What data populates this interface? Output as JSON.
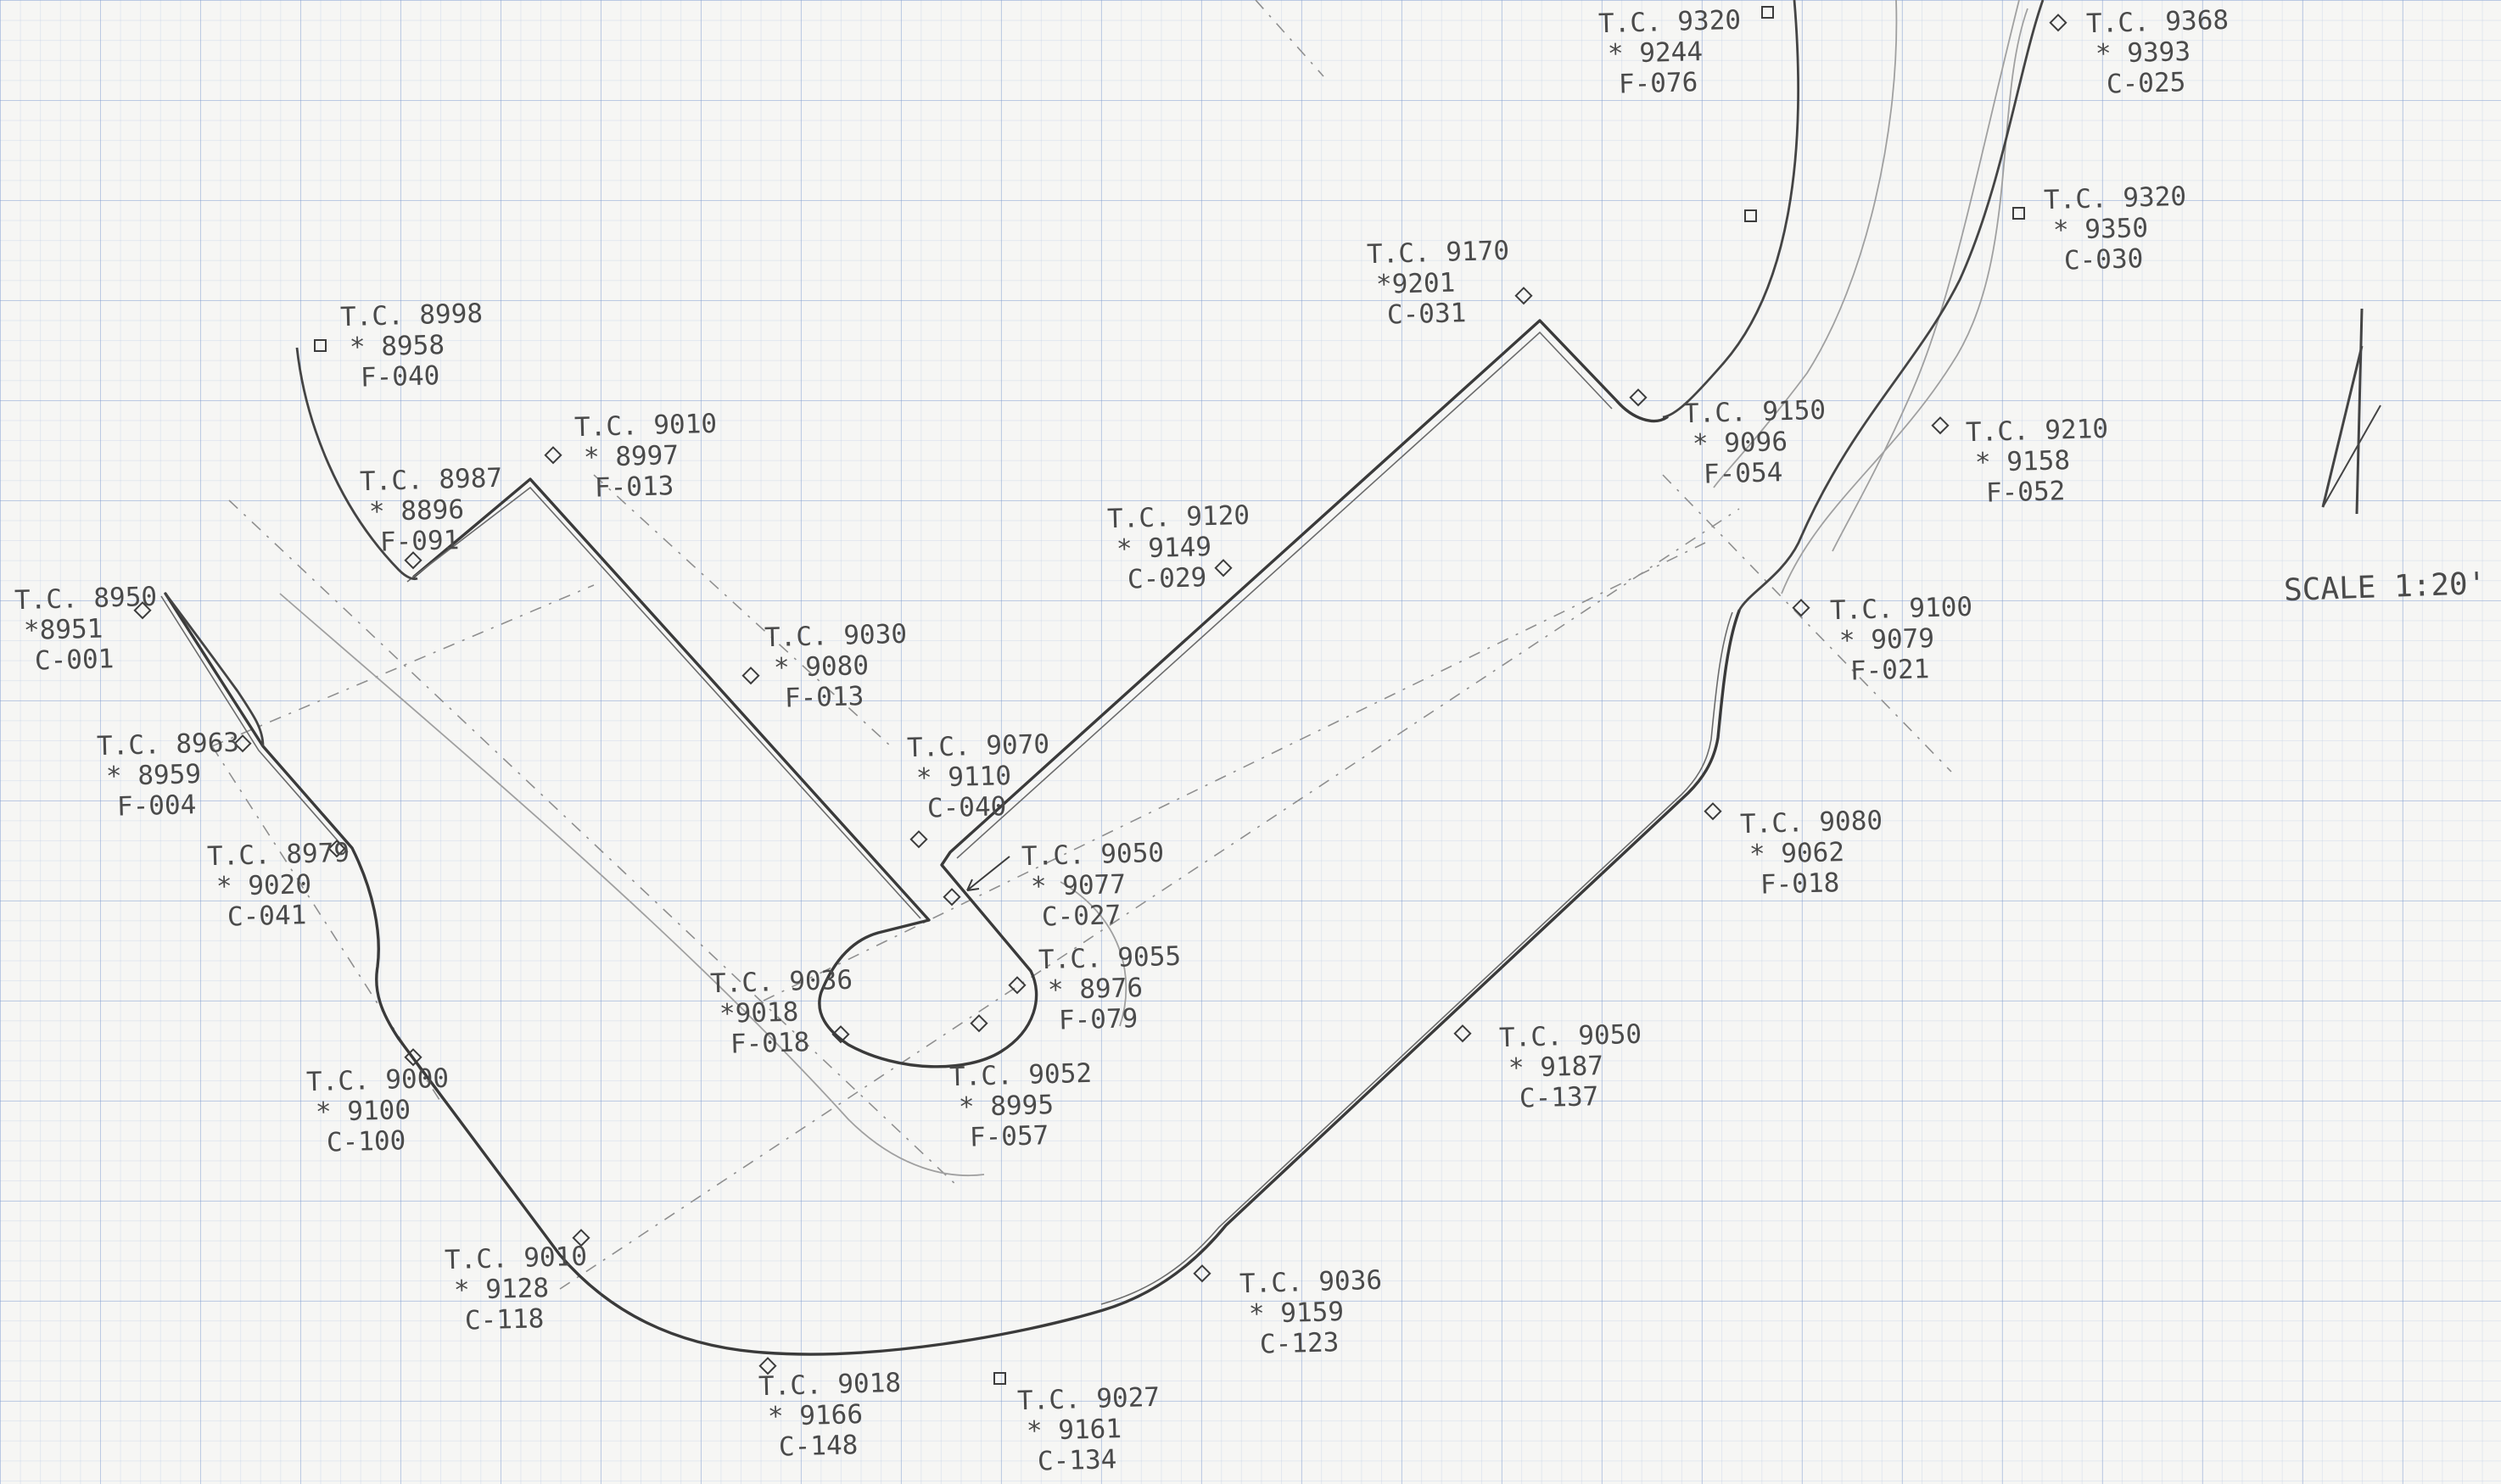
{
  "drawing": {
    "scale_label": "SCALE 1:20'",
    "north_arrow_icon": "north-arrow-icon",
    "elevation_icon": "diamond-marker-icon",
    "colors": {
      "line": "#3c3c3c",
      "faint": "#8a8a8a",
      "grid": "#7896cd"
    }
  },
  "elevations": [
    {
      "tc": "T.C. 8998",
      "value": "* 8958",
      "cutfill": "F-040"
    },
    {
      "tc": "T.C. 8987",
      "value": "* 8896",
      "cutfill": "F-091"
    },
    {
      "tc": "T.C. 9010",
      "value": "* 8997",
      "cutfill": "F-013"
    },
    {
      "tc": "T.C. 8950",
      "value": "*8951",
      "cutfill": "C-001"
    },
    {
      "tc": "T.C. 8963",
      "value": "* 8959",
      "cutfill": "F-004"
    },
    {
      "tc": "T.C. 8979",
      "value": "* 9020",
      "cutfill": "C-041"
    },
    {
      "tc": "T.C. 9000",
      "value": "* 9100",
      "cutfill": "C-100"
    },
    {
      "tc": "T.C. 9010",
      "value": "* 9128",
      "cutfill": "C-118"
    },
    {
      "tc": "T.C. 9018",
      "value": "* 9166",
      "cutfill": "C-148"
    },
    {
      "tc": "T.C. 9027",
      "value": "* 9161",
      "cutfill": "C-134"
    },
    {
      "tc": "T.C. 9030",
      "value": "* 9080",
      "cutfill": "F-013"
    },
    {
      "tc": "T.C. 9070",
      "value": "* 9110",
      "cutfill": "C-040"
    },
    {
      "tc": "T.C. 9050",
      "value": "* 9077",
      "cutfill": "C-027"
    },
    {
      "tc": "T.C. 9036",
      "value": "*9018",
      "cutfill": "F-018"
    },
    {
      "tc": "T.C. 9055",
      "value": "* 8976",
      "cutfill": "F-079"
    },
    {
      "tc": "T.C. 9052",
      "value": "* 8995",
      "cutfill": "F-057"
    },
    {
      "tc": "T.C. 9050",
      "value": "* 9187",
      "cutfill": "C-137"
    },
    {
      "tc": "T.C. 9036",
      "value": "* 9159",
      "cutfill": "C-123"
    },
    {
      "tc": "T.C. 9120",
      "value": "* 9149",
      "cutfill": "C-029"
    },
    {
      "tc": "T.C. 9170",
      "value": "*9201",
      "cutfill": "C-031"
    },
    {
      "tc": "T.C. 9320",
      "value": "* 9244",
      "cutfill": "F-076"
    },
    {
      "tc": "T.C. 9368",
      "value": "* 9393",
      "cutfill": "C-025"
    },
    {
      "tc": "T.C. 9320",
      "value": "* 9350",
      "cutfill": "C-030"
    },
    {
      "tc": "T.C. 9150",
      "value": "* 9096",
      "cutfill": "F-054"
    },
    {
      "tc": "T.C. 9210",
      "value": "* 9158",
      "cutfill": "F-052"
    },
    {
      "tc": "T.C. 9100",
      "value": "* 9079",
      "cutfill": "F-021"
    },
    {
      "tc": "T.C. 9080",
      "value": "* 9062",
      "cutfill": "F-018"
    }
  ]
}
